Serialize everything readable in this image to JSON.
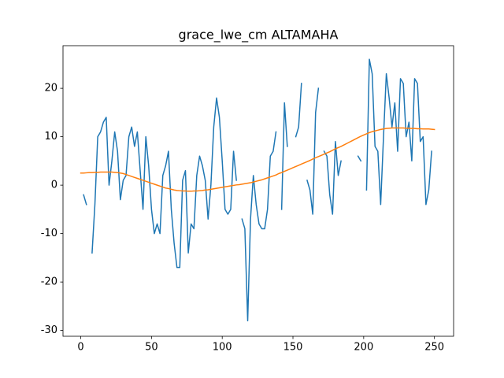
{
  "chart_data": {
    "type": "line",
    "title": "grace_lwe_cm ALTAMAHA",
    "x": [
      0,
      2,
      4,
      6,
      8,
      10,
      12,
      14,
      16,
      18,
      20,
      22,
      24,
      26,
      28,
      30,
      32,
      34,
      36,
      38,
      40,
      42,
      44,
      46,
      48,
      50,
      52,
      54,
      56,
      58,
      60,
      62,
      64,
      66,
      68,
      70,
      72,
      74,
      76,
      78,
      80,
      82,
      84,
      86,
      88,
      90,
      92,
      94,
      96,
      98,
      100,
      102,
      104,
      106,
      108,
      110,
      112,
      114,
      116,
      118,
      120,
      122,
      124,
      126,
      128,
      130,
      132,
      134,
      136,
      138,
      140,
      142,
      144,
      146,
      148,
      150,
      152,
      154,
      156,
      158,
      160,
      162,
      164,
      166,
      168,
      170,
      172,
      174,
      176,
      178,
      180,
      182,
      184,
      186,
      188,
      190,
      192,
      194,
      196,
      198,
      200,
      202,
      204,
      206,
      208,
      210,
      212,
      214,
      216,
      218,
      220,
      222,
      224,
      226,
      228,
      230,
      232,
      234,
      236,
      238,
      240,
      242,
      244,
      246,
      248,
      250
    ],
    "series": [
      {
        "color": "#1f77b4",
        "values": [
          null,
          -2,
          -4,
          null,
          -14,
          -4,
          10,
          11,
          13,
          14,
          0,
          5,
          11,
          7,
          -3,
          1,
          2,
          10,
          12,
          8,
          11,
          3,
          -5,
          10,
          4,
          -5,
          -10,
          -8,
          -10,
          2,
          4,
          7,
          -5,
          -12,
          -17,
          -17,
          1,
          3,
          -14,
          -8,
          -9,
          2,
          6,
          4,
          1,
          -7,
          0,
          12,
          18,
          14,
          5,
          -5,
          -6,
          -5,
          7,
          1,
          null,
          -7,
          -9,
          -28,
          -7,
          2,
          -4,
          -8,
          -9,
          -9,
          -5,
          6,
          7,
          11,
          null,
          -5,
          17,
          8,
          null,
          null,
          10,
          12,
          21,
          null,
          1,
          -1,
          -6,
          15,
          20,
          null,
          7,
          6,
          -2,
          -6,
          9,
          2,
          5,
          null,
          null,
          null,
          null,
          null,
          6,
          5,
          null,
          -1,
          26,
          23,
          8,
          7,
          -4,
          10,
          23,
          18,
          12,
          17,
          7,
          22,
          21,
          10,
          13,
          5,
          22,
          21,
          9,
          10,
          -4,
          -1,
          7,
          null
        ]
      },
      {
        "color": "#ff7f0e",
        "values": [
          2.5,
          2.5,
          2.55,
          2.6,
          2.6,
          2.65,
          2.65,
          2.7,
          2.7,
          2.7,
          2.7,
          2.7,
          2.65,
          2.6,
          2.5,
          2.4,
          2.2,
          2.0,
          1.8,
          1.6,
          1.4,
          1.2,
          1.0,
          0.8,
          0.6,
          0.4,
          0.2,
          0.0,
          -0.2,
          -0.4,
          -0.6,
          -0.7,
          -0.85,
          -1.0,
          -1.1,
          -1.15,
          -1.2,
          -1.2,
          -1.25,
          -1.25,
          -1.2,
          -1.2,
          -1.15,
          -1.1,
          -1.0,
          -0.95,
          -0.85,
          -0.75,
          -0.65,
          -0.55,
          -0.45,
          -0.35,
          -0.25,
          -0.15,
          -0.05,
          0.05,
          0.1,
          0.2,
          0.3,
          0.4,
          0.5,
          0.65,
          0.8,
          0.95,
          1.1,
          1.3,
          1.5,
          1.7,
          1.9,
          2.1,
          2.4,
          2.6,
          2.85,
          3.1,
          3.35,
          3.6,
          3.85,
          4.1,
          4.35,
          4.6,
          4.85,
          5.1,
          5.4,
          5.65,
          5.9,
          6.15,
          6.4,
          6.65,
          6.9,
          7.2,
          7.5,
          7.75,
          8.0,
          8.3,
          8.6,
          8.9,
          9.2,
          9.5,
          9.8,
          10.1,
          10.35,
          10.6,
          10.85,
          11.05,
          11.2,
          11.35,
          11.5,
          11.6,
          11.7,
          11.75,
          11.8,
          11.8,
          11.8,
          11.8,
          11.8,
          11.75,
          11.75,
          11.7,
          11.7,
          11.65,
          11.65,
          11.6,
          11.6,
          11.6,
          11.55,
          11.5
        ]
      }
    ],
    "xlim": [
      -12.55,
      263.55
    ],
    "xticks": [
      0,
      50,
      100,
      150,
      200,
      250
    ],
    "ylim": [
      -31.2,
      28.8
    ],
    "yticks": [
      -30,
      -20,
      -10,
      0,
      10,
      20
    ]
  }
}
